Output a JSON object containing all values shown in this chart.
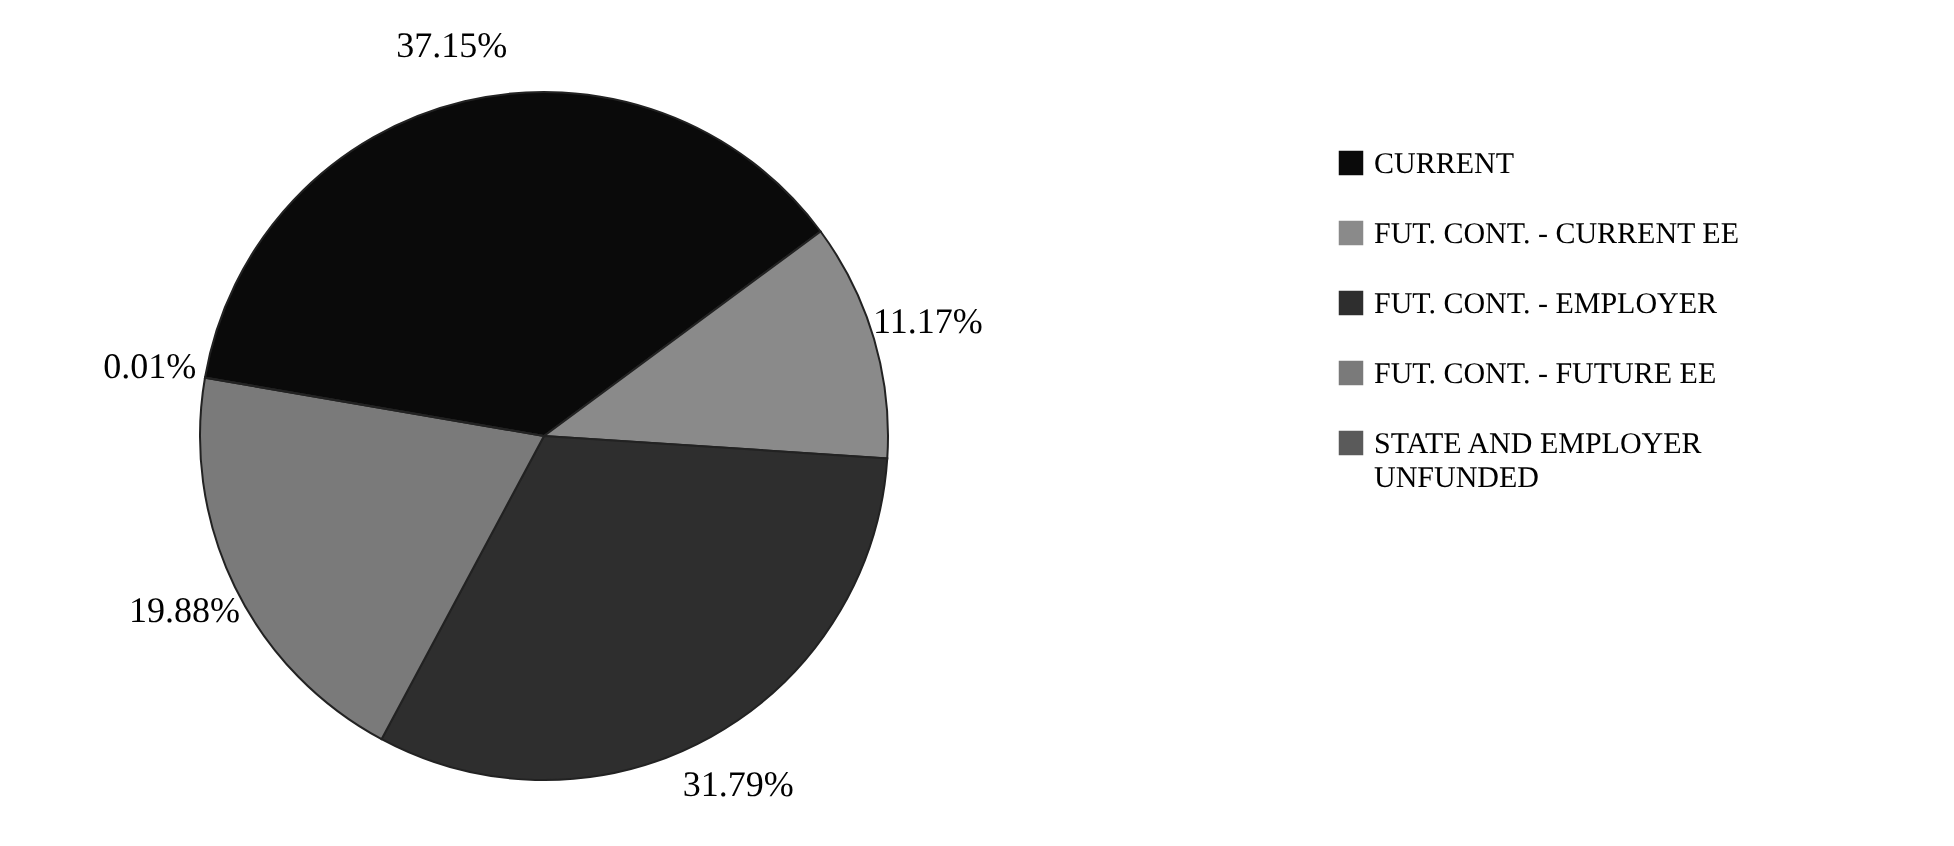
{
  "chart_data": {
    "type": "pie",
    "categories": [
      "CURRENT",
      "FUT. CONT. - CURRENT EE",
      "FUT. CONT. - EMPLOYER",
      "FUT. CONT. - FUTURE EE",
      "STATE AND EMPLOYER UNFUNDED"
    ],
    "values": [
      37.15,
      11.17,
      31.79,
      19.88,
      0.01
    ],
    "value_labels": [
      "37.15%",
      "11.17%",
      "31.79%",
      "19.88%",
      "0.01%"
    ],
    "colors": [
      "#0a0a0a",
      "#8a8a8a",
      "#2e2e2e",
      "#7a7a7a",
      "#5a5a5a"
    ],
    "legend": "right"
  }
}
